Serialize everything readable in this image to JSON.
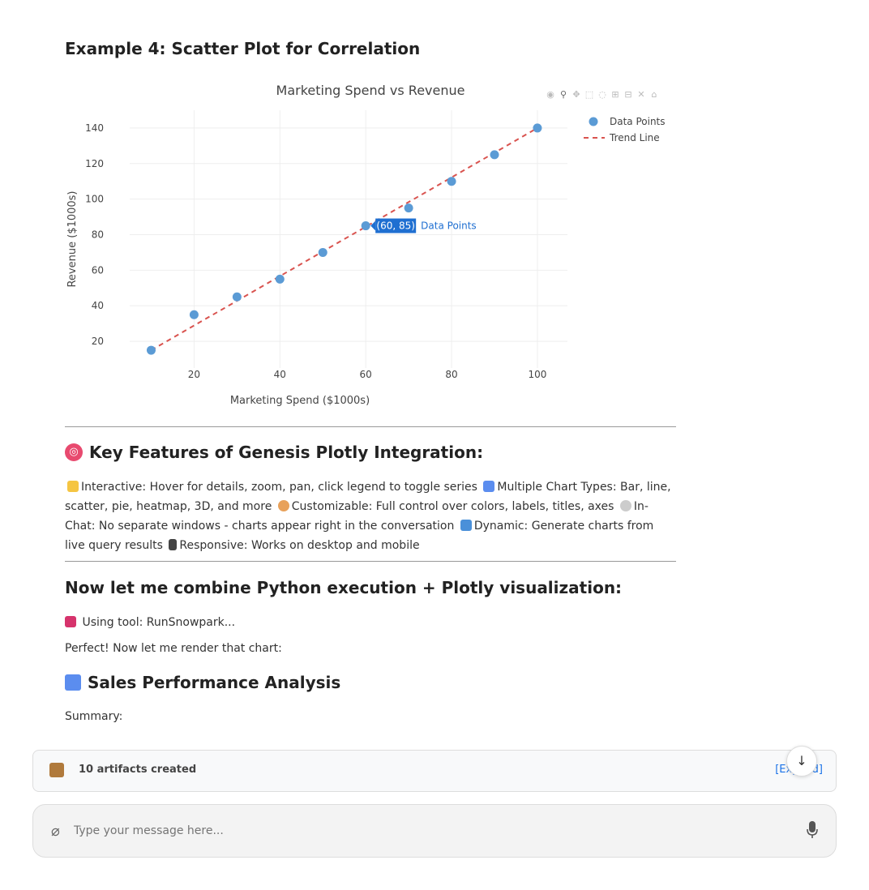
{
  "example_heading": "Example 4: Scatter Plot for Correlation",
  "chart_data": {
    "type": "scatter",
    "title": "Marketing Spend vs Revenue",
    "xlabel": "Marketing Spend ($1000s)",
    "ylabel": "Revenue ($1000s)",
    "xlim": [
      5,
      107
    ],
    "ylim": [
      5,
      150
    ],
    "x_ticks": [
      "20",
      "40",
      "60",
      "80",
      "100"
    ],
    "y_ticks": [
      "20",
      "40",
      "60",
      "80",
      "100",
      "120",
      "140"
    ],
    "grid": true,
    "legend_position": "top-right",
    "series": [
      {
        "name": "Data Points",
        "mode": "markers",
        "color": "#5b9bd5",
        "x": [
          10,
          20,
          30,
          40,
          50,
          60,
          70,
          80,
          90,
          100
        ],
        "y": [
          15,
          35,
          45,
          55,
          70,
          85,
          95,
          110,
          125,
          140
        ]
      },
      {
        "name": "Trend Line",
        "mode": "dashed-line",
        "color": "#d9534f",
        "x": [
          10,
          100
        ],
        "y": [
          15,
          140
        ]
      }
    ],
    "hover": {
      "label": "(60, 85)",
      "series": "Data Points",
      "x": 60,
      "y": 85
    }
  },
  "features": {
    "heading": "Key Features of Genesis Plotly Integration:",
    "items": [
      {
        "icon": "sparkles-icon",
        "text": "Interactive: Hover for details, zoom, pan, click legend to toggle series"
      },
      {
        "icon": "bar-chart-icon",
        "text": "Multiple Chart Types: Bar, line, scatter, pie, heatmap, 3D, and more"
      },
      {
        "icon": "palette-icon",
        "text": "Customizable: Full control over colors, labels, titles, axes"
      },
      {
        "icon": "speech-bubble-icon",
        "text": "In-Chat: No separate windows - charts appear right in the conversation"
      },
      {
        "icon": "refresh-icon",
        "text": "Dynamic: Generate charts from live query results"
      },
      {
        "icon": "phone-icon",
        "text": "Responsive: Works on desktop and mobile"
      }
    ]
  },
  "combine_heading": "Now let me combine Python execution + Plotly visualization:",
  "tool_line": "Using tool: RunSnowpark...",
  "render_line": "Perfect! Now let me render that chart:",
  "sales_heading": "Sales Performance Analysis",
  "summary_label": "Summary:",
  "artifacts": {
    "label": "10 artifacts created",
    "expand": "[Expand]"
  },
  "input": {
    "placeholder": "Type your message here..."
  },
  "colors": {
    "accent": "#1a73e8",
    "point": "#5b9bd5",
    "trend": "#d9534f"
  }
}
